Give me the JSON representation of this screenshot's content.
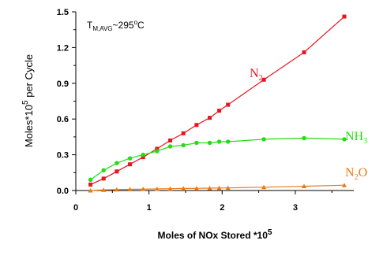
{
  "chart_data": {
    "type": "line",
    "xlabel": "Moles of NOx Stored *10",
    "xlabel_sup": "5",
    "ylabel": "Moles*10",
    "ylabel_sup": "5",
    "ylabel_suffix": "  per Cycle",
    "xlim": [
      0,
      3.8
    ],
    "ylim": [
      0,
      1.5
    ],
    "x_ticks": [
      0,
      1,
      2,
      3
    ],
    "y_ticks": [
      0.0,
      0.3,
      0.6,
      0.9,
      1.2,
      1.5
    ],
    "y_tick_labels": [
      "0.0",
      "0.3",
      "0.6",
      "0.9",
      "1.2",
      "1.5"
    ],
    "annotation": {
      "main": "T",
      "sub": "M,AVG",
      "rest": "~295",
      "sup": "o",
      "unit": "C"
    },
    "series": [
      {
        "name": "N2",
        "label_main": "N",
        "label_sub": "2",
        "color": "#e8141e",
        "marker": "square",
        "x": [
          0.2,
          0.38,
          0.56,
          0.74,
          0.92,
          1.11,
          1.29,
          1.47,
          1.65,
          1.83,
          1.96,
          2.08,
          2.57,
          3.12,
          3.67
        ],
        "y": [
          0.05,
          0.1,
          0.16,
          0.22,
          0.28,
          0.35,
          0.42,
          0.48,
          0.55,
          0.61,
          0.67,
          0.72,
          0.93,
          1.16,
          1.46
        ]
      },
      {
        "name": "NH3",
        "label_main": "NH",
        "label_sub": "3",
        "color": "#22dd11",
        "marker": "circle",
        "x": [
          0.2,
          0.38,
          0.56,
          0.74,
          0.92,
          1.11,
          1.29,
          1.47,
          1.65,
          1.83,
          1.96,
          2.08,
          2.57,
          3.12,
          3.67
        ],
        "y": [
          0.09,
          0.17,
          0.23,
          0.27,
          0.3,
          0.33,
          0.37,
          0.38,
          0.4,
          0.4,
          0.41,
          0.41,
          0.43,
          0.44,
          0.43
        ]
      },
      {
        "name": "N2O",
        "label_main": "N",
        "label_sub": "2",
        "label_rest": "O",
        "color": "#ee7711",
        "marker": "triangle",
        "x": [
          0.2,
          0.38,
          0.56,
          0.74,
          0.92,
          1.11,
          1.29,
          1.47,
          1.65,
          1.83,
          1.96,
          2.08,
          2.57,
          3.12,
          3.67
        ],
        "y": [
          0.0,
          0.005,
          0.008,
          0.01,
          0.012,
          0.013,
          0.015,
          0.017,
          0.018,
          0.02,
          0.021,
          0.022,
          0.028,
          0.036,
          0.045
        ]
      }
    ]
  }
}
